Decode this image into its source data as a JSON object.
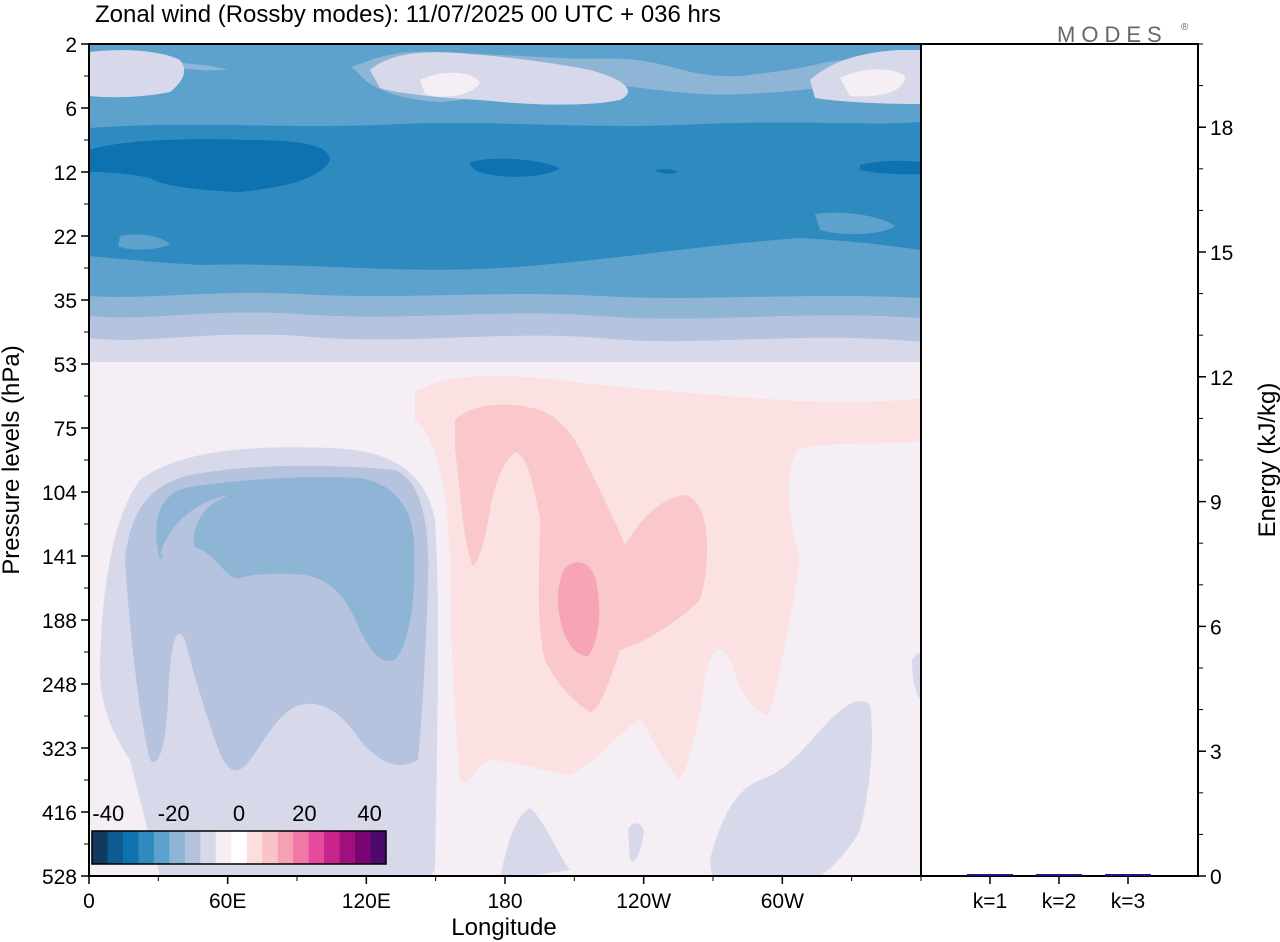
{
  "chart_data": [
    {
      "type": "heatmap",
      "title": "Zonal wind (Rossby modes):  11/07/2025  00 UTC  + 036 hrs",
      "xlabel": "Longitude",
      "ylabel": "Pressure levels (hPa)",
      "x_ticks": [
        "0",
        "60E",
        "120E",
        "180",
        "120W",
        "60W"
      ],
      "x_tick_values": [
        0,
        60,
        120,
        180,
        240,
        300
      ],
      "xlim": [
        0,
        360
      ],
      "y_ticks": [
        "2",
        "6",
        "12",
        "22",
        "35",
        "53",
        "75",
        "104",
        "141",
        "188",
        "248",
        "323",
        "416",
        "528"
      ],
      "y_scale": "model levels (equally spaced)",
      "colorbar": {
        "labels": [
          "-40",
          "-20",
          "0",
          "20",
          "40"
        ],
        "values": [
          -40,
          -20,
          0,
          20,
          40
        ],
        "range": [
          -45,
          45
        ],
        "step": 5,
        "colors": [
          "#123a5e",
          "#0d5b8f",
          "#0f72b0",
          "#2f8ac0",
          "#5ca2cc",
          "#8fb5d6",
          "#b5c3df",
          "#d7d9ea",
          "#f5eef5",
          "#ffffff",
          "#fcdedd",
          "#f9c3c7",
          "#f6a0b4",
          "#f077a8",
          "#e44b9d",
          "#c9238d",
          "#a0107d",
          "#7a0572",
          "#4c0a6a"
        ],
        "location": "bottom-left"
      }
    },
    {
      "type": "bar",
      "categories": [
        "k=1",
        "k=2",
        "k=3"
      ],
      "values": [
        0.03,
        0.01,
        0.005
      ],
      "ylabel": "Energy (kJ/kg)",
      "y_ticks": [
        "0",
        "3",
        "6",
        "9",
        "12",
        "15",
        "18"
      ],
      "ylim": [
        0,
        20
      ],
      "bar_colors": [
        "#1a1a8c",
        "#1a1a8c",
        "#1a1a8c"
      ]
    }
  ],
  "logo": {
    "text": "MODES",
    "mark": "®"
  },
  "colors": {
    "background_contour": "#f5eef5",
    "frame": "#000000"
  }
}
